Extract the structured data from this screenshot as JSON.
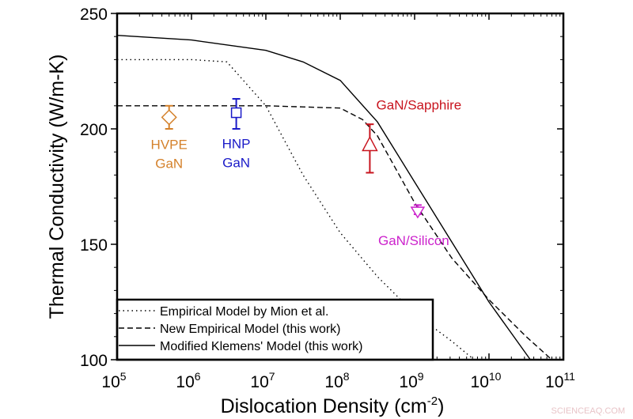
{
  "chart_data": {
    "type": "line",
    "title": "",
    "xlabel": "Dislocation Density (cm",
    "xlabel_sup": "-2",
    "xlabel_close": ")",
    "ylabel": "Thermal Conductivity (W/m-K)",
    "xscale": "log",
    "xlim": [
      100000,
      100000000000
    ],
    "ylim": [
      100,
      250
    ],
    "x_ticks": [
      {
        "base": "10",
        "exp": "5"
      },
      {
        "base": "10",
        "exp": "6"
      },
      {
        "base": "10",
        "exp": "7"
      },
      {
        "base": "10",
        "exp": "8"
      },
      {
        "base": "10",
        "exp": "9"
      },
      {
        "base": "10",
        "exp": "10"
      },
      {
        "base": "10",
        "exp": "11"
      }
    ],
    "y_ticks": [
      "100",
      "150",
      "200",
      "250"
    ],
    "grid": false,
    "legend_position": "bottom-left",
    "series": [
      {
        "name": "Empirical Model by Mion et al.",
        "style": "dotted",
        "color": "#000000",
        "x": [
          100000,
          1000000,
          3000000,
          10000000,
          31600000,
          100000000,
          316000000,
          1000000000,
          3160000000,
          6300000000
        ],
        "y": [
          230,
          230,
          229,
          210,
          180,
          155,
          136,
          120,
          108,
          100
        ]
      },
      {
        "name": "New Empirical Model (this work)",
        "style": "dashed",
        "color": "#000000",
        "x": [
          100000,
          10000000,
          100000000,
          200000000,
          316000000,
          1000000000,
          3160000000,
          10000000000,
          31600000000,
          70000000000
        ],
        "y": [
          210,
          210,
          209,
          204,
          197,
          168,
          144,
          126,
          110,
          100
        ]
      },
      {
        "name": "Modified Klemens' Model (this work)",
        "style": "solid",
        "color": "#000000",
        "x": [
          100000,
          1000000,
          10000000,
          31600000,
          100000000,
          316000000,
          1000000000,
          3160000000,
          10000000000,
          36000000000
        ],
        "y": [
          240.5,
          238.5,
          234,
          229,
          221,
          203,
          177,
          151,
          125,
          100
        ]
      }
    ],
    "data_points": [
      {
        "label_lines": [
          "HVPE",
          "GaN"
        ],
        "x": 500000,
        "y": 205,
        "err_low": 200,
        "err_high": 210,
        "marker": "diamond",
        "color": "#d4812b"
      },
      {
        "label_lines": [
          "HNP",
          "GaN"
        ],
        "x": 4000000,
        "y": 207,
        "err_low": 200,
        "err_high": 213,
        "marker": "square",
        "color": "#1a1ac8"
      },
      {
        "label_lines": [
          "GaN/Sapphire"
        ],
        "x": 250000000,
        "y": 193,
        "err_low": 181,
        "err_high": 202,
        "marker": "triangle-up",
        "color": "#c8141e"
      },
      {
        "label_lines": [
          "GaN/Silicon"
        ],
        "x": 1100000000,
        "y": 164,
        "err_low": 163,
        "err_high": 167,
        "marker": "triangle-down",
        "color": "#cc22cc"
      }
    ]
  },
  "watermark": "SCIENCEAQ.COM"
}
